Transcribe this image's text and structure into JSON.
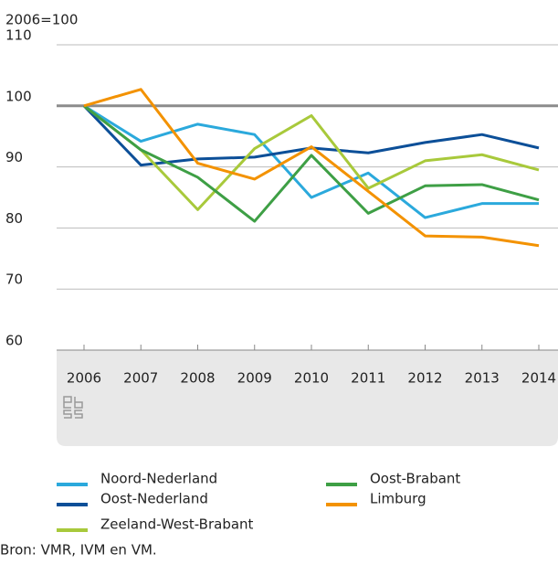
{
  "chart_data": {
    "type": "line",
    "ylabel": "2006=100",
    "x": [
      2006,
      2007,
      2008,
      2009,
      2010,
      2011,
      2012,
      2013,
      2014
    ],
    "series": [
      {
        "name": "Noord-Nederland",
        "color": "#2ba9dc",
        "values": [
          100,
          94.2,
          97,
          95.3,
          85,
          89,
          81.7,
          84,
          84
        ]
      },
      {
        "name": "Oost-Nederland",
        "color": "#0c4f98",
        "values": [
          100,
          90.3,
          91.3,
          91.6,
          93.1,
          92.3,
          94,
          95.3,
          93.1
        ]
      },
      {
        "name": "Zeeland-West-Brabant",
        "color": "#a8c93b",
        "values": [
          100,
          92.8,
          83,
          93,
          98.4,
          86.5,
          91,
          92,
          89.5
        ]
      },
      {
        "name": "Oost-Brabant",
        "color": "#3e9f45",
        "values": [
          100,
          92.8,
          88.3,
          81.1,
          91.9,
          82.4,
          86.9,
          87.1,
          84.6
        ]
      },
      {
        "name": "Limburg",
        "color": "#f39200",
        "values": [
          100,
          102.7,
          90.6,
          88,
          93.3,
          86,
          78.7,
          78.5,
          77.1
        ]
      }
    ],
    "reference_line": 100,
    "ylim": [
      60,
      110
    ],
    "yticks": [
      60,
      70,
      80,
      90,
      100,
      110
    ],
    "grid": true,
    "source": "Bron: VMR, IVM en VM."
  }
}
